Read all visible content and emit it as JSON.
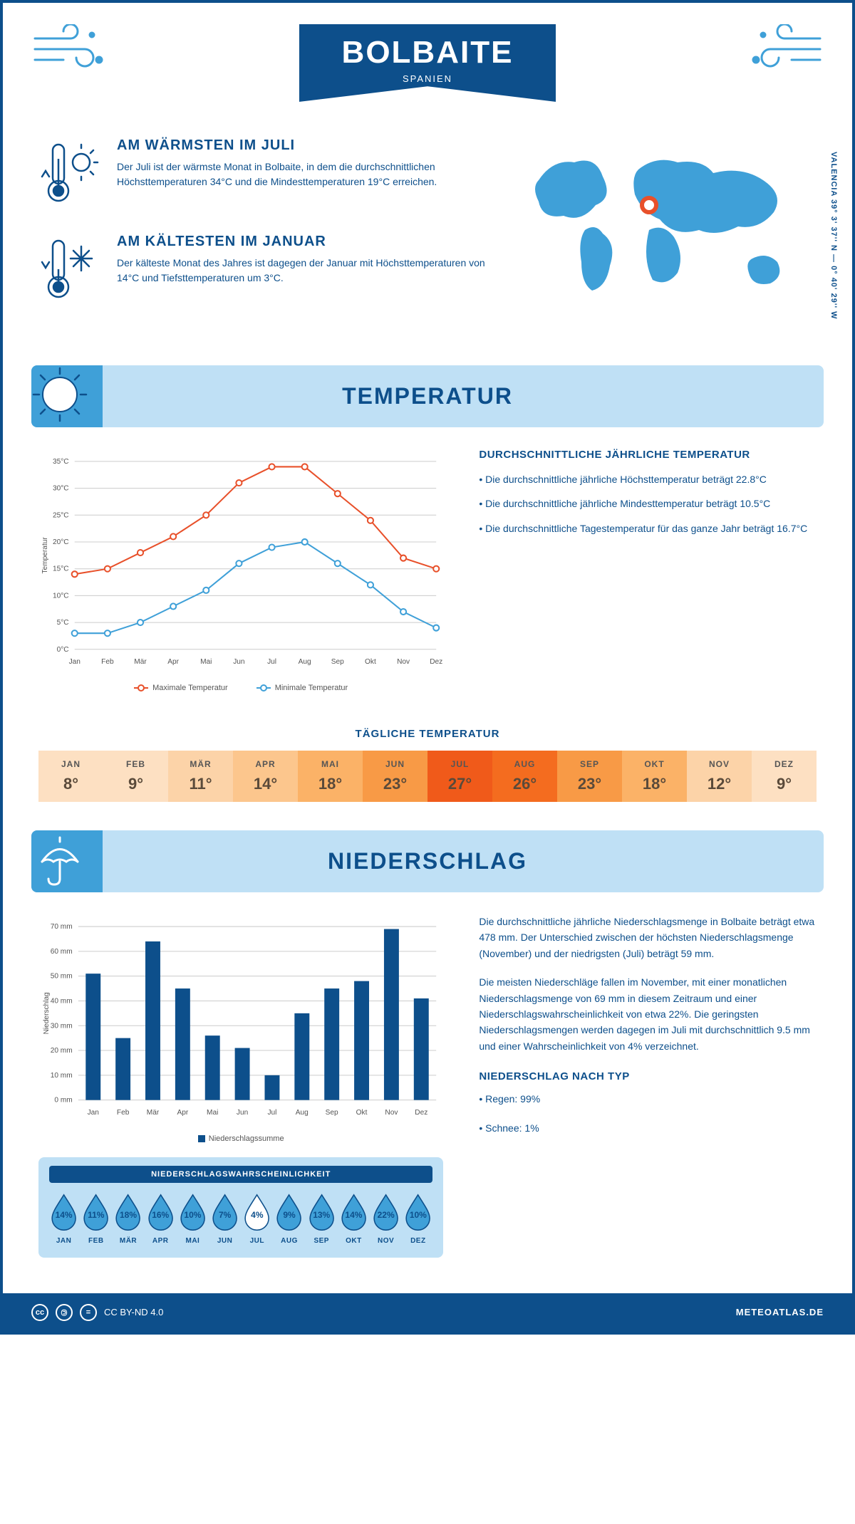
{
  "header": {
    "title": "BOLBAITE",
    "subtitle": "SPANIEN"
  },
  "coords": "VALENCIA    39° 3' 37'' N — 0° 40' 29'' W",
  "warmest": {
    "heading": "AM WÄRMSTEN IM JULI",
    "text": "Der Juli ist der wärmste Monat in Bolbaite, in dem die durchschnittlichen Höchsttemperaturen 34°C und die Mindesttemperaturen 19°C erreichen."
  },
  "coldest": {
    "heading": "AM KÄLTESTEN IM JANUAR",
    "text": "Der kälteste Monat des Jahres ist dagegen der Januar mit Höchsttemperaturen von 14°C und Tiefsttemperaturen um 3°C."
  },
  "section_temp": "TEMPERATUR",
  "section_precip": "NIEDERSCHLAG",
  "temp_chart": {
    "type": "line",
    "months": [
      "Jan",
      "Feb",
      "Mär",
      "Apr",
      "Mai",
      "Jun",
      "Jul",
      "Aug",
      "Sep",
      "Okt",
      "Nov",
      "Dez"
    ],
    "ylabel": "Temperatur",
    "ylim": [
      0,
      35
    ],
    "ytick_step": 5,
    "ytick_suffix": "°C",
    "grid_color": "#cccccc",
    "series": [
      {
        "name": "Maximale Temperatur",
        "color": "#e8502a",
        "values": [
          14,
          15,
          18,
          21,
          25,
          31,
          34,
          34,
          29,
          24,
          17,
          15
        ]
      },
      {
        "name": "Minimale Temperatur",
        "color": "#3fa0d8",
        "values": [
          3,
          3,
          5,
          8,
          11,
          16,
          19,
          20,
          16,
          12,
          7,
          4
        ]
      }
    ],
    "marker_size": 4,
    "line_width": 2
  },
  "temp_text": {
    "heading": "DURCHSCHNITTLICHE JÄHRLICHE TEMPERATUR",
    "bullets": [
      "• Die durchschnittliche jährliche Höchsttemperatur beträgt 22.8°C",
      "• Die durchschnittliche jährliche Mindesttemperatur beträgt 10.5°C",
      "• Die durchschnittliche Tagestemperatur für das ganze Jahr beträgt 16.7°C"
    ]
  },
  "daily_temp": {
    "heading": "TÄGLICHE TEMPERATUR",
    "months": [
      "JAN",
      "FEB",
      "MÄR",
      "APR",
      "MAI",
      "JUN",
      "JUL",
      "AUG",
      "SEP",
      "OKT",
      "NOV",
      "DEZ"
    ],
    "values": [
      "8°",
      "9°",
      "11°",
      "14°",
      "18°",
      "23°",
      "27°",
      "26°",
      "23°",
      "18°",
      "12°",
      "9°"
    ],
    "colors": [
      "#fde0c2",
      "#fde0c2",
      "#fcd3a8",
      "#fcc68d",
      "#fbb267",
      "#f89a46",
      "#f05a1a",
      "#f46c1f",
      "#f89a46",
      "#fbb267",
      "#fcd3a8",
      "#fde0c2"
    ]
  },
  "precip_chart": {
    "type": "bar",
    "months": [
      "Jan",
      "Feb",
      "Mär",
      "Apr",
      "Mai",
      "Jun",
      "Jul",
      "Aug",
      "Sep",
      "Okt",
      "Nov",
      "Dez"
    ],
    "ylabel": "Niederschlag",
    "ylim": [
      0,
      70
    ],
    "ytick_step": 10,
    "ytick_suffix": " mm",
    "values": [
      51,
      25,
      64,
      45,
      26,
      21,
      10,
      35,
      45,
      48,
      69,
      41
    ],
    "bar_color": "#0d4f8b",
    "grid_color": "#cccccc",
    "legend": "Niederschlagssumme"
  },
  "precip_text": {
    "para1": "Die durchschnittliche jährliche Niederschlagsmenge in Bolbaite beträgt etwa 478 mm. Der Unterschied zwischen der höchsten Niederschlagsmenge (November) und der niedrigsten (Juli) beträgt 59 mm.",
    "para2": "Die meisten Niederschläge fallen im November, mit einer monatlichen Niederschlagsmenge von 69 mm in diesem Zeitraum und einer Niederschlagswahrscheinlichkeit von etwa 22%. Die geringsten Niederschlagsmengen werden dagegen im Juli mit durchschnittlich 9.5 mm und einer Wahrscheinlichkeit von 4% verzeichnet.",
    "type_heading": "NIEDERSCHLAG NACH TYP",
    "type_bullets": [
      "• Regen: 99%",
      "• Schnee: 1%"
    ]
  },
  "precip_prob": {
    "heading": "NIEDERSCHLAGSWAHRSCHEINLICHKEIT",
    "months": [
      "JAN",
      "FEB",
      "MÄR",
      "APR",
      "MAI",
      "JUN",
      "JUL",
      "AUG",
      "SEP",
      "OKT",
      "NOV",
      "DEZ"
    ],
    "values": [
      "14%",
      "11%",
      "18%",
      "16%",
      "10%",
      "7%",
      "4%",
      "9%",
      "13%",
      "14%",
      "22%",
      "10%"
    ],
    "min_index": 6,
    "fill_color": "#3fa0d8",
    "min_fill": "#ffffff",
    "stroke": "#0d4f8b"
  },
  "footer": {
    "license": "CC BY-ND 4.0",
    "brand": "METEOATLAS.DE"
  }
}
